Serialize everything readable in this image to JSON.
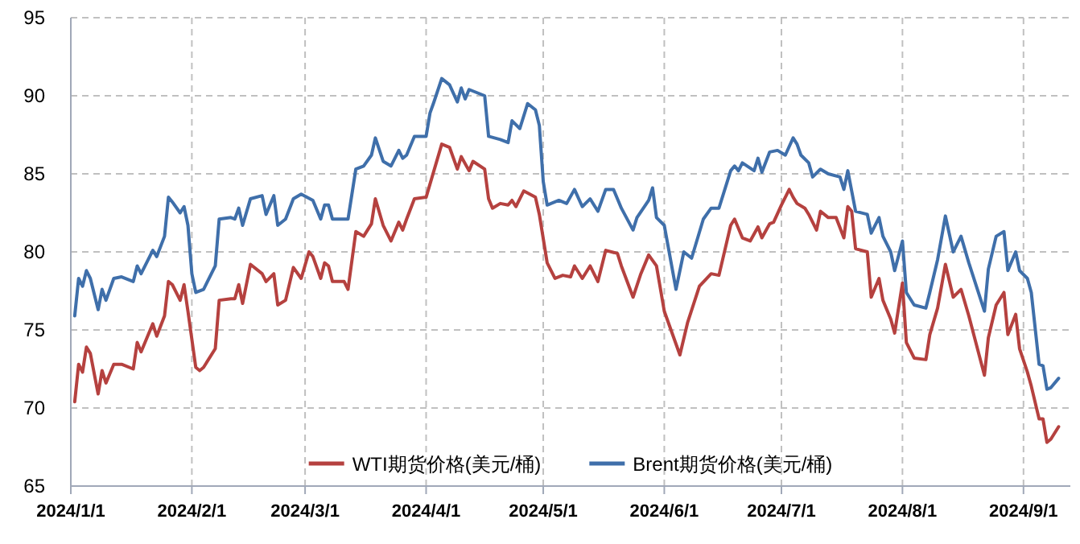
{
  "chart_data": {
    "type": "line",
    "xlim": [
      "2024-01-01",
      "2024-09-13"
    ],
    "xticks": [
      {
        "value": "2024-01-01",
        "label": "2024/1/1"
      },
      {
        "value": "2024-02-01",
        "label": "2024/2/1"
      },
      {
        "value": "2024-03-01",
        "label": "2024/3/1"
      },
      {
        "value": "2024-04-01",
        "label": "2024/4/1"
      },
      {
        "value": "2024-05-01",
        "label": "2024/5/1"
      },
      {
        "value": "2024-06-01",
        "label": "2024/6/1"
      },
      {
        "value": "2024-07-01",
        "label": "2024/7/1"
      },
      {
        "value": "2024-08-01",
        "label": "2024/8/1"
      },
      {
        "value": "2024-09-01",
        "label": "2024/9/1"
      }
    ],
    "ylim": [
      65,
      95
    ],
    "yticks": [
      65,
      70,
      75,
      80,
      85,
      90,
      95
    ],
    "grid": true,
    "legend": "bottom",
    "line_style": "solid",
    "marker": "none",
    "series": [
      {
        "name": "WTI期货价格(美元/桶)",
        "color": "#b5413f",
        "x": [
          "2024-01-02",
          "2024-01-03",
          "2024-01-04",
          "2024-01-05",
          "2024-01-06",
          "2024-01-08",
          "2024-01-09",
          "2024-01-10",
          "2024-01-12",
          "2024-01-14",
          "2024-01-17",
          "2024-01-18",
          "2024-01-19",
          "2024-01-22",
          "2024-01-23",
          "2024-01-25",
          "2024-01-26",
          "2024-01-27",
          "2024-01-29",
          "2024-01-30",
          "2024-01-31",
          "2024-02-02",
          "2024-02-03",
          "2024-02-04",
          "2024-02-07",
          "2024-02-08",
          "2024-02-11",
          "2024-02-12",
          "2024-02-13",
          "2024-02-14",
          "2024-02-16",
          "2024-02-19",
          "2024-02-20",
          "2024-02-22",
          "2024-02-23",
          "2024-02-25",
          "2024-02-27",
          "2024-02-29",
          "2024-03-02",
          "2024-03-03",
          "2024-03-05",
          "2024-03-06",
          "2024-03-07",
          "2024-03-08",
          "2024-03-11",
          "2024-03-12",
          "2024-03-14",
          "2024-03-16",
          "2024-03-18",
          "2024-03-19",
          "2024-03-21",
          "2024-03-23",
          "2024-03-25",
          "2024-03-26",
          "2024-03-27",
          "2024-03-29",
          "2024-04-01",
          "2024-04-03",
          "2024-04-05",
          "2024-04-07",
          "2024-04-09",
          "2024-04-10",
          "2024-04-12",
          "2024-04-13",
          "2024-04-16",
          "2024-04-17",
          "2024-04-18",
          "2024-04-20",
          "2024-04-22",
          "2024-04-23",
          "2024-04-24",
          "2024-04-26",
          "2024-04-29",
          "2024-04-30",
          "2024-05-02",
          "2024-05-04",
          "2024-05-06",
          "2024-05-08",
          "2024-05-09",
          "2024-05-11",
          "2024-05-13",
          "2024-05-15",
          "2024-05-17",
          "2024-05-20",
          "2024-05-21",
          "2024-05-24",
          "2024-05-26",
          "2024-05-28",
          "2024-05-30",
          "2024-06-01",
          "2024-06-05",
          "2024-06-07",
          "2024-06-10",
          "2024-06-13",
          "2024-06-15",
          "2024-06-18",
          "2024-06-19",
          "2024-06-21",
          "2024-06-23",
          "2024-06-25",
          "2024-06-26",
          "2024-06-28",
          "2024-06-29",
          "2024-07-01",
          "2024-07-03",
          "2024-07-04",
          "2024-07-05",
          "2024-07-07",
          "2024-07-08",
          "2024-07-10",
          "2024-07-11",
          "2024-07-13",
          "2024-07-15",
          "2024-07-17",
          "2024-07-18",
          "2024-07-19",
          "2024-07-20",
          "2024-07-23",
          "2024-07-24",
          "2024-07-26",
          "2024-07-27",
          "2024-07-29",
          "2024-07-30",
          "2024-08-01",
          "2024-08-02",
          "2024-08-04",
          "2024-08-07",
          "2024-08-08",
          "2024-08-10",
          "2024-08-12",
          "2024-08-14",
          "2024-08-16",
          "2024-08-18",
          "2024-08-22",
          "2024-08-23",
          "2024-08-25",
          "2024-08-27",
          "2024-08-28",
          "2024-08-30",
          "2024-08-31",
          "2024-09-02",
          "2024-09-03",
          "2024-09-05",
          "2024-09-06",
          "2024-09-07",
          "2024-09-08",
          "2024-09-10"
        ],
        "values": [
          70.4,
          72.8,
          72.3,
          73.9,
          73.5,
          70.9,
          72.4,
          71.6,
          72.8,
          72.8,
          72.5,
          74.2,
          73.6,
          75.4,
          74.6,
          75.9,
          78.1,
          77.9,
          76.9,
          77.9,
          76.2,
          72.6,
          72.4,
          72.6,
          73.8,
          76.9,
          77.0,
          77.0,
          77.9,
          76.7,
          79.2,
          78.6,
          78.1,
          78.6,
          76.6,
          76.9,
          79.0,
          78.3,
          80.0,
          79.7,
          78.3,
          79.3,
          79.1,
          78.1,
          78.1,
          77.6,
          81.3,
          81.0,
          81.8,
          83.4,
          81.7,
          80.7,
          81.9,
          81.4,
          82.1,
          83.4,
          83.5,
          85.2,
          86.9,
          86.7,
          85.3,
          86.1,
          85.2,
          85.8,
          85.3,
          83.4,
          82.8,
          83.1,
          83.0,
          83.3,
          82.9,
          83.9,
          83.5,
          82.4,
          79.3,
          78.3,
          78.5,
          78.4,
          79.1,
          78.3,
          79.1,
          78.1,
          80.1,
          79.9,
          79.1,
          77.1,
          78.6,
          79.8,
          79.1,
          76.2,
          73.4,
          75.5,
          77.8,
          78.6,
          78.5,
          81.7,
          82.1,
          80.9,
          80.7,
          81.6,
          80.9,
          81.8,
          81.9,
          83.0,
          84.0,
          83.5,
          83.1,
          82.8,
          82.4,
          81.4,
          82.6,
          82.2,
          82.2,
          80.9,
          82.9,
          82.6,
          80.2,
          80.0,
          77.1,
          78.3,
          76.9,
          75.7,
          74.8,
          78.0,
          74.2,
          73.2,
          73.1,
          74.7,
          76.4,
          79.2,
          77.1,
          77.6,
          75.9,
          72.1,
          74.5,
          76.6,
          77.4,
          74.7,
          76.0,
          73.8,
          72.3,
          71.4,
          69.3,
          69.3,
          67.8,
          68.0,
          68.8
        ]
      },
      {
        "name": "Brent期货价格(美元/桶)",
        "color": "#3f6faa",
        "x": [
          "2024-01-02",
          "2024-01-03",
          "2024-01-04",
          "2024-01-05",
          "2024-01-06",
          "2024-01-08",
          "2024-01-09",
          "2024-01-10",
          "2024-01-12",
          "2024-01-14",
          "2024-01-17",
          "2024-01-18",
          "2024-01-19",
          "2024-01-22",
          "2024-01-23",
          "2024-01-25",
          "2024-01-26",
          "2024-01-27",
          "2024-01-29",
          "2024-01-30",
          "2024-01-31",
          "2024-02-01",
          "2024-02-02",
          "2024-02-04",
          "2024-02-07",
          "2024-02-08",
          "2024-02-11",
          "2024-02-12",
          "2024-02-13",
          "2024-02-14",
          "2024-02-16",
          "2024-02-19",
          "2024-02-20",
          "2024-02-22",
          "2024-02-23",
          "2024-02-25",
          "2024-02-27",
          "2024-02-29",
          "2024-03-03",
          "2024-03-05",
          "2024-03-06",
          "2024-03-07",
          "2024-03-08",
          "2024-03-12",
          "2024-03-14",
          "2024-03-16",
          "2024-03-18",
          "2024-03-19",
          "2024-03-21",
          "2024-03-23",
          "2024-03-25",
          "2024-03-26",
          "2024-03-27",
          "2024-03-29",
          "2024-04-01",
          "2024-04-02",
          "2024-04-03",
          "2024-04-05",
          "2024-04-07",
          "2024-04-09",
          "2024-04-10",
          "2024-04-11",
          "2024-04-12",
          "2024-04-16",
          "2024-04-17",
          "2024-04-20",
          "2024-04-22",
          "2024-04-23",
          "2024-04-25",
          "2024-04-27",
          "2024-04-29",
          "2024-04-30",
          "2024-05-01",
          "2024-05-02",
          "2024-05-05",
          "2024-05-07",
          "2024-05-09",
          "2024-05-11",
          "2024-05-13",
          "2024-05-15",
          "2024-05-17",
          "2024-05-19",
          "2024-05-21",
          "2024-05-24",
          "2024-05-25",
          "2024-05-28",
          "2024-05-29",
          "2024-05-30",
          "2024-06-01",
          "2024-06-04",
          "2024-06-06",
          "2024-06-08",
          "2024-06-11",
          "2024-06-13",
          "2024-06-15",
          "2024-06-18",
          "2024-06-19",
          "2024-06-20",
          "2024-06-21",
          "2024-06-24",
          "2024-06-25",
          "2024-06-26",
          "2024-06-28",
          "2024-06-30",
          "2024-07-02",
          "2024-07-04",
          "2024-07-05",
          "2024-07-06",
          "2024-07-08",
          "2024-07-09",
          "2024-07-11",
          "2024-07-13",
          "2024-07-16",
          "2024-07-17",
          "2024-07-18",
          "2024-07-20",
          "2024-07-23",
          "2024-07-24",
          "2024-07-26",
          "2024-07-27",
          "2024-07-29",
          "2024-07-30",
          "2024-08-01",
          "2024-08-02",
          "2024-08-04",
          "2024-08-07",
          "2024-08-08",
          "2024-08-10",
          "2024-08-12",
          "2024-08-14",
          "2024-08-16",
          "2024-08-18",
          "2024-08-22",
          "2024-08-23",
          "2024-08-25",
          "2024-08-27",
          "2024-08-28",
          "2024-08-30",
          "2024-08-31",
          "2024-09-02",
          "2024-09-03",
          "2024-09-05",
          "2024-09-06",
          "2024-09-07",
          "2024-09-08",
          "2024-09-10"
        ],
        "values": [
          75.9,
          78.3,
          77.8,
          78.8,
          78.3,
          76.3,
          77.6,
          76.9,
          78.3,
          78.4,
          78.1,
          79.1,
          78.6,
          80.1,
          79.7,
          81.0,
          83.5,
          83.2,
          82.5,
          82.9,
          81.7,
          78.6,
          77.4,
          77.6,
          79.1,
          82.1,
          82.2,
          82.1,
          82.8,
          81.7,
          83.4,
          83.6,
          82.4,
          83.6,
          81.7,
          82.1,
          83.4,
          83.7,
          83.3,
          82.1,
          83.0,
          83.0,
          82.1,
          82.1,
          85.3,
          85.5,
          86.2,
          87.3,
          85.8,
          85.5,
          86.5,
          86.0,
          86.2,
          87.4,
          87.4,
          88.9,
          89.6,
          91.1,
          90.7,
          89.6,
          90.5,
          89.8,
          90.4,
          90.0,
          87.4,
          87.2,
          87.0,
          88.4,
          87.9,
          89.5,
          89.1,
          88.1,
          84.5,
          83.0,
          83.3,
          83.1,
          84.0,
          82.9,
          83.4,
          82.6,
          84.0,
          84.0,
          82.8,
          81.4,
          82.2,
          83.3,
          84.1,
          82.2,
          81.7,
          77.6,
          80.0,
          79.6,
          82.1,
          82.8,
          82.8,
          85.2,
          85.5,
          85.2,
          85.7,
          85.2,
          86.0,
          85.1,
          86.4,
          86.5,
          86.2,
          87.3,
          86.9,
          86.2,
          85.7,
          84.8,
          85.3,
          85.0,
          84.8,
          84.0,
          85.2,
          82.6,
          82.4,
          81.2,
          82.2,
          81.0,
          80.0,
          78.8,
          80.7,
          77.4,
          76.6,
          76.4,
          77.4,
          79.5,
          82.3,
          80.0,
          81.0,
          79.3,
          76.2,
          78.9,
          81.0,
          81.3,
          78.8,
          80.0,
          78.8,
          78.3,
          77.4,
          72.8,
          72.7,
          71.2,
          71.3,
          71.9
        ]
      }
    ]
  }
}
